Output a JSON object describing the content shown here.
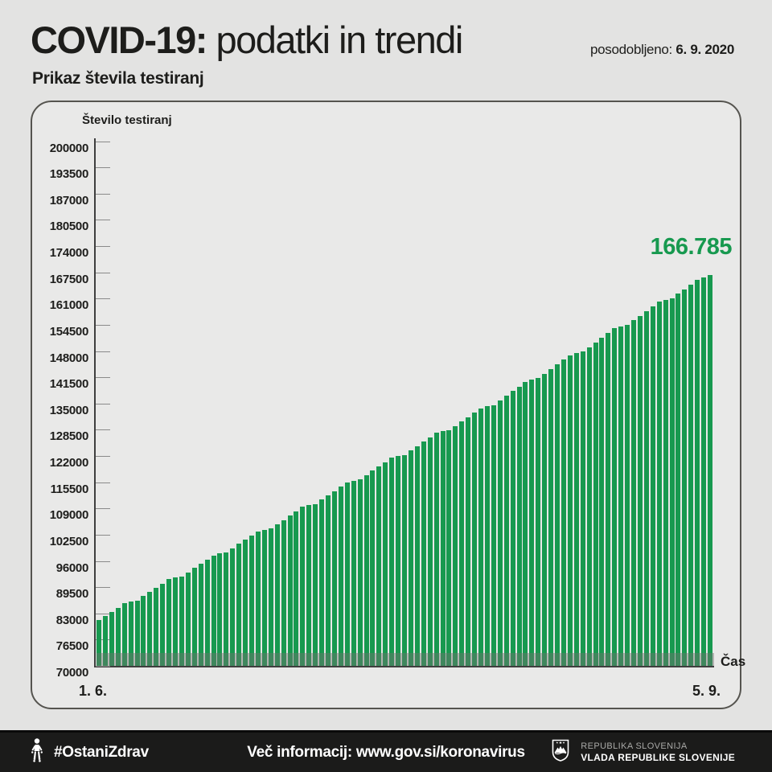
{
  "header": {
    "title_bold": "COVID-19:",
    "title_rest": " podatki in trendi",
    "updated_label": "posodobljeno: ",
    "updated_date": "6. 9. 2020",
    "subtitle": "Prikaz števila testiranj"
  },
  "chart_data": {
    "type": "bar",
    "title": "Prikaz števila testiranj",
    "ylabel": "Število testiranj",
    "xlabel": "Čas",
    "x_start_label": "1. 6.",
    "x_end_label": "5. 9.",
    "ylim": [
      70000,
      200000
    ],
    "y_ticks": [
      200000,
      193500,
      187000,
      180500,
      174000,
      167500,
      161000,
      154500,
      148000,
      141500,
      135000,
      128500,
      122000,
      115500,
      109000,
      102500,
      96000,
      89500,
      83000,
      76500,
      70000
    ],
    "grid": false,
    "legend": false,
    "bar_color": "#17994f",
    "last_value_label": "166.785",
    "values": [
      81300,
      82350,
      83400,
      84450,
      85500,
      85920,
      86200,
      87250,
      88300,
      89350,
      90400,
      91450,
      91870,
      92150,
      93200,
      94250,
      95300,
      96350,
      97400,
      97820,
      98100,
      99150,
      100200,
      101250,
      102300,
      103350,
      103770,
      104050,
      105100,
      106150,
      107230,
      108310,
      109390,
      109810,
      110090,
      111170,
      112250,
      113330,
      114410,
      115490,
      115910,
      116190,
      117270,
      118350,
      119430,
      120510,
      121590,
      122010,
      122290,
      123370,
      124450,
      125530,
      126610,
      127690,
      128110,
      128390,
      129470,
      130550,
      131630,
      132710,
      133790,
      134290,
      134640,
      135790,
      136940,
      138090,
      139240,
      140390,
      140890,
      141240,
      142390,
      143540,
      144690,
      145840,
      146990,
      147490,
      147840,
      148990,
      150140,
      151290,
      152440,
      153590,
      154090,
      154440,
      155590,
      156740,
      157890,
      159040,
      160190,
      160690,
      161040,
      162190,
      163340,
      164490,
      165640,
      166290,
      166785
    ]
  },
  "footer": {
    "hashtag": "#OstaniZdrav",
    "info": "Več informacij: www.gov.si/koronavirus",
    "gov_line1": "REPUBLIKA SLOVENIJA",
    "gov_line2": "VLADA REPUBLIKE SLOVENIJE"
  },
  "colors": {
    "accent_green": "#17994f",
    "page_background": "#e3e3e2",
    "card_background": "#e9e9e8",
    "footer_background": "#1b1b1a",
    "text_dark": "#1d1d1b"
  }
}
